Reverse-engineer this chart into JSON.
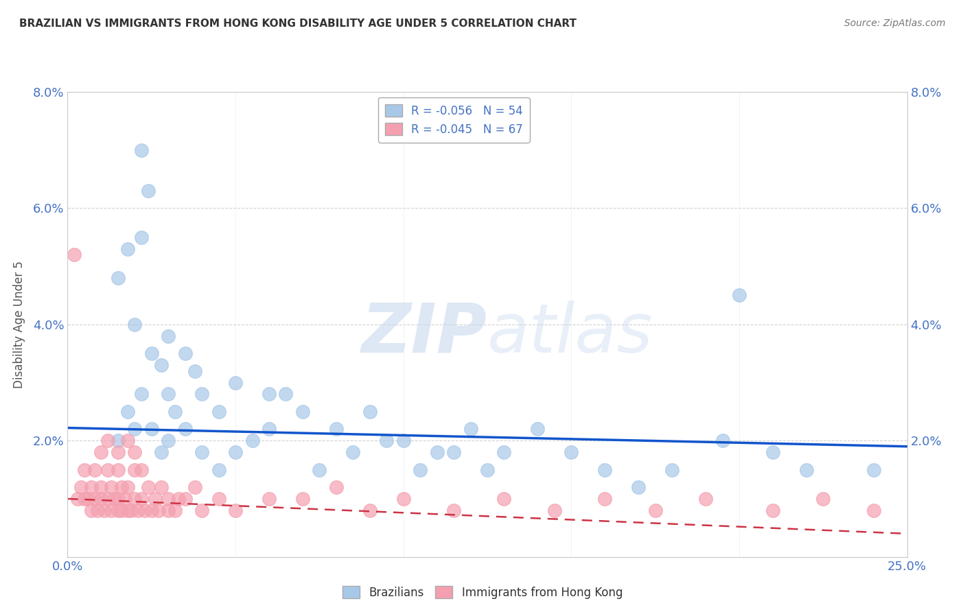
{
  "title": "BRAZILIAN VS IMMIGRANTS FROM HONG KONG DISABILITY AGE UNDER 5 CORRELATION CHART",
  "source": "Source: ZipAtlas.com",
  "ylabel": "Disability Age Under 5",
  "xlim": [
    0.0,
    0.25
  ],
  "ylim": [
    0.0,
    0.08
  ],
  "legend_r_blue": "R = -0.056",
  "legend_n_blue": "N = 54",
  "legend_r_pink": "R = -0.045",
  "legend_n_pink": "N = 67",
  "blue_color": "#a8c8e8",
  "pink_color": "#f4a0b0",
  "blue_line_color": "#1155cc",
  "pink_line_color": "#cc3344",
  "watermark_zip": "ZIP",
  "watermark_atlas": "atlas",
  "background_color": "#ffffff",
  "grid_color": "#cccccc",
  "blue_scatter_x": [
    0.022,
    0.015,
    0.018,
    0.02,
    0.022,
    0.024,
    0.025,
    0.028,
    0.03,
    0.03,
    0.032,
    0.035,
    0.038,
    0.04,
    0.045,
    0.05,
    0.06,
    0.07,
    0.08,
    0.09,
    0.1,
    0.11,
    0.12,
    0.13,
    0.14,
    0.15,
    0.16,
    0.17,
    0.18,
    0.195,
    0.2,
    0.21,
    0.22,
    0.24,
    0.015,
    0.018,
    0.02,
    0.022,
    0.025,
    0.028,
    0.03,
    0.035,
    0.04,
    0.045,
    0.05,
    0.055,
    0.06,
    0.065,
    0.075,
    0.085,
    0.095,
    0.105,
    0.115,
    0.125
  ],
  "blue_scatter_y": [
    0.07,
    0.048,
    0.053,
    0.04,
    0.055,
    0.063,
    0.035,
    0.033,
    0.028,
    0.038,
    0.025,
    0.035,
    0.032,
    0.028,
    0.025,
    0.03,
    0.028,
    0.025,
    0.022,
    0.025,
    0.02,
    0.018,
    0.022,
    0.018,
    0.022,
    0.018,
    0.015,
    0.012,
    0.015,
    0.02,
    0.045,
    0.018,
    0.015,
    0.015,
    0.02,
    0.025,
    0.022,
    0.028,
    0.022,
    0.018,
    0.02,
    0.022,
    0.018,
    0.015,
    0.018,
    0.02,
    0.022,
    0.028,
    0.015,
    0.018,
    0.02,
    0.015,
    0.018,
    0.015
  ],
  "pink_scatter_x": [
    0.002,
    0.003,
    0.004,
    0.005,
    0.005,
    0.006,
    0.007,
    0.007,
    0.008,
    0.008,
    0.009,
    0.01,
    0.01,
    0.011,
    0.012,
    0.012,
    0.013,
    0.013,
    0.014,
    0.015,
    0.015,
    0.015,
    0.016,
    0.016,
    0.017,
    0.018,
    0.018,
    0.019,
    0.02,
    0.02,
    0.021,
    0.022,
    0.023,
    0.024,
    0.025,
    0.026,
    0.027,
    0.028,
    0.03,
    0.03,
    0.032,
    0.033,
    0.035,
    0.038,
    0.04,
    0.045,
    0.05,
    0.06,
    0.07,
    0.08,
    0.09,
    0.1,
    0.115,
    0.13,
    0.145,
    0.16,
    0.175,
    0.19,
    0.21,
    0.225,
    0.24,
    0.01,
    0.012,
    0.015,
    0.018,
    0.02,
    0.022
  ],
  "pink_scatter_y": [
    0.052,
    0.01,
    0.012,
    0.01,
    0.015,
    0.01,
    0.008,
    0.012,
    0.01,
    0.015,
    0.008,
    0.01,
    0.012,
    0.008,
    0.01,
    0.015,
    0.008,
    0.012,
    0.01,
    0.008,
    0.01,
    0.015,
    0.008,
    0.012,
    0.01,
    0.008,
    0.012,
    0.008,
    0.01,
    0.015,
    0.008,
    0.01,
    0.008,
    0.012,
    0.008,
    0.01,
    0.008,
    0.012,
    0.008,
    0.01,
    0.008,
    0.01,
    0.01,
    0.012,
    0.008,
    0.01,
    0.008,
    0.01,
    0.01,
    0.012,
    0.008,
    0.01,
    0.008,
    0.01,
    0.008,
    0.01,
    0.008,
    0.01,
    0.008,
    0.01,
    0.008,
    0.018,
    0.02,
    0.018,
    0.02,
    0.018,
    0.015
  ]
}
